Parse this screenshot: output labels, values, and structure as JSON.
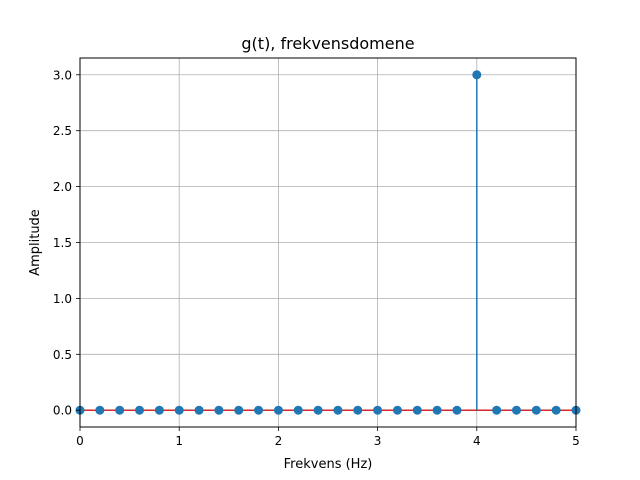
{
  "chart_data": {
    "type": "stem",
    "title": "g(t), frekvensdomene",
    "xlabel": "Frekvens (Hz)",
    "ylabel": "Amplitude",
    "xlim": [
      0,
      5
    ],
    "ylim": [
      -0.15,
      3.15
    ],
    "x_ticks": [
      0,
      1,
      2,
      3,
      4,
      5
    ],
    "x_tick_labels": [
      "0",
      "1",
      "2",
      "3",
      "4",
      "5"
    ],
    "y_ticks": [
      0.0,
      0.5,
      1.0,
      1.5,
      2.0,
      2.5,
      3.0
    ],
    "y_tick_labels": [
      "0.0",
      "0.5",
      "1.0",
      "1.5",
      "2.0",
      "2.5",
      "3.0"
    ],
    "grid": true,
    "color": "#1f77b4",
    "x": [
      0.0,
      0.2,
      0.4,
      0.6,
      0.8,
      1.0,
      1.2,
      1.4,
      1.6,
      1.8,
      2.0,
      2.2,
      2.4,
      2.6,
      2.8,
      3.0,
      3.2,
      3.4,
      3.6,
      3.8,
      4.0,
      4.2,
      4.4,
      4.6,
      4.8,
      5.0
    ],
    "y": [
      0,
      0,
      0,
      0,
      0,
      0,
      0,
      0,
      0,
      0,
      0,
      0,
      0,
      0,
      0,
      0,
      0,
      0,
      0,
      0,
      3,
      0,
      0,
      0,
      0,
      0
    ]
  }
}
